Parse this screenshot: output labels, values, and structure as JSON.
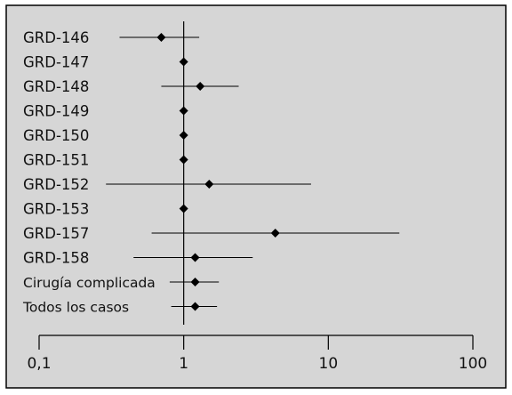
{
  "chart_data": {
    "type": "scatter",
    "subtype": "forest-plot",
    "x_scale": "log",
    "xlim": [
      0.1,
      100
    ],
    "x_ticks": [
      {
        "value": 0.1,
        "label": "0,1"
      },
      {
        "value": 1,
        "label": "1"
      },
      {
        "value": 10,
        "label": "10"
      },
      {
        "value": 100,
        "label": "100"
      }
    ],
    "reference_line": 1,
    "rows": [
      {
        "label": "GRD-146",
        "estimate": 0.7,
        "lower": 0.36,
        "upper": 1.28
      },
      {
        "label": "GRD-147",
        "estimate": 1.0,
        "lower": 1.0,
        "upper": 1.0
      },
      {
        "label": "GRD-148",
        "estimate": 1.3,
        "lower": 0.7,
        "upper": 2.4
      },
      {
        "label": "GRD-149",
        "estimate": 1.0,
        "lower": 1.0,
        "upper": 1.0
      },
      {
        "label": "GRD-150",
        "estimate": 1.0,
        "lower": 1.0,
        "upper": 1.0
      },
      {
        "label": "GRD-151",
        "estimate": 1.0,
        "lower": 1.0,
        "upper": 1.0
      },
      {
        "label": "GRD-152",
        "estimate": 1.5,
        "lower": 0.29,
        "upper": 7.6
      },
      {
        "label": "GRD-153",
        "estimate": 1.0,
        "lower": 1.0,
        "upper": 1.0
      },
      {
        "label": "GRD-157",
        "estimate": 4.3,
        "lower": 0.6,
        "upper": 31
      },
      {
        "label": "GRD-158",
        "estimate": 1.2,
        "lower": 0.45,
        "upper": 3.0
      },
      {
        "label": "Cirugía complicada",
        "estimate": 1.2,
        "lower": 0.8,
        "upper": 1.75
      },
      {
        "label": "Todos los casos",
        "estimate": 1.2,
        "lower": 0.82,
        "upper": 1.7
      }
    ],
    "colors": {
      "background": "#d6d6d6",
      "marker": "#000000",
      "line": "#000000",
      "border": "#000000"
    },
    "marker": "diamond",
    "grid": false
  }
}
